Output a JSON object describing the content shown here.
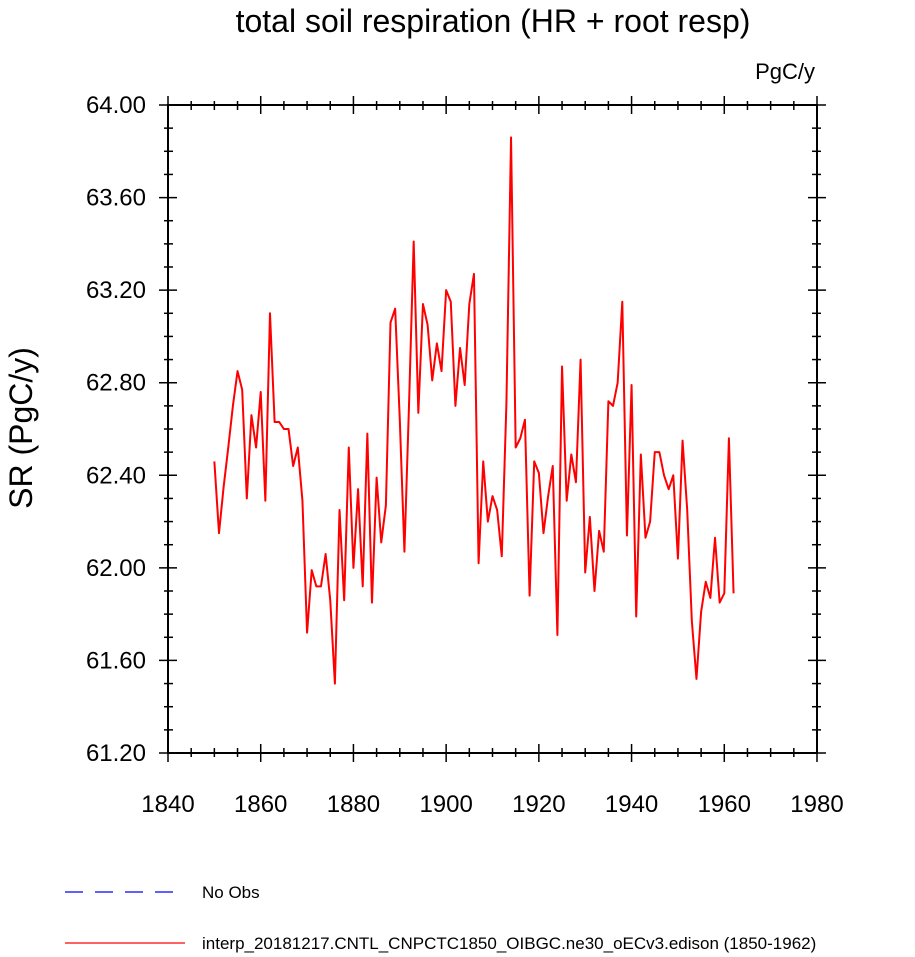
{
  "chart_data": {
    "type": "line",
    "title": "total soil respiration (HR + root resp)",
    "units_label": "PgC/y",
    "ylabel": "SR  (PgC/y)",
    "xlabel": "",
    "xlim": [
      1840,
      1980
    ],
    "ylim": [
      61.2,
      64.0
    ],
    "x_ticks": [
      1840,
      1860,
      1880,
      1900,
      1920,
      1940,
      1960,
      1980
    ],
    "x_tick_labels": [
      "1840",
      "1860",
      "1880",
      "1900",
      "1920",
      "1940",
      "1960",
      "1980"
    ],
    "y_ticks": [
      61.2,
      61.6,
      62.0,
      62.4,
      62.8,
      63.2,
      63.6,
      64.0
    ],
    "y_tick_labels": [
      "61.20",
      "61.60",
      "62.00",
      "62.40",
      "62.80",
      "63.20",
      "63.60",
      "64.00"
    ],
    "series": [
      {
        "name": "interp_20181217.CNTL_CNPCTC1850_OIBGC.ne30_oECv3.edison (1850-1962)",
        "color": "#ff0000",
        "style": "solid",
        "x": [
          1850,
          1851,
          1852,
          1853,
          1854,
          1855,
          1856,
          1857,
          1858,
          1859,
          1860,
          1861,
          1862,
          1863,
          1864,
          1865,
          1866,
          1867,
          1868,
          1869,
          1870,
          1871,
          1872,
          1873,
          1874,
          1875,
          1876,
          1877,
          1878,
          1879,
          1880,
          1881,
          1882,
          1883,
          1884,
          1885,
          1886,
          1887,
          1888,
          1889,
          1890,
          1891,
          1892,
          1893,
          1894,
          1895,
          1896,
          1897,
          1898,
          1899,
          1900,
          1901,
          1902,
          1903,
          1904,
          1905,
          1906,
          1907,
          1908,
          1909,
          1910,
          1911,
          1912,
          1913,
          1914,
          1915,
          1916,
          1917,
          1918,
          1919,
          1920,
          1921,
          1922,
          1923,
          1924,
          1925,
          1926,
          1927,
          1928,
          1929,
          1930,
          1931,
          1932,
          1933,
          1934,
          1935,
          1936,
          1937,
          1938,
          1939,
          1940,
          1941,
          1942,
          1943,
          1944,
          1945,
          1946,
          1947,
          1948,
          1949,
          1950,
          1951,
          1952,
          1953,
          1954,
          1955,
          1956,
          1957,
          1958,
          1959,
          1960,
          1961,
          1962
        ],
        "values": [
          62.46,
          62.15,
          62.35,
          62.52,
          62.7,
          62.85,
          62.77,
          62.3,
          62.66,
          62.52,
          62.76,
          62.29,
          63.1,
          62.63,
          62.63,
          62.6,
          62.6,
          62.44,
          62.52,
          62.29,
          61.72,
          61.99,
          61.92,
          61.92,
          62.06,
          61.86,
          61.5,
          62.25,
          61.86,
          62.52,
          62.0,
          62.34,
          61.92,
          62.58,
          61.85,
          62.39,
          62.11,
          62.27,
          63.06,
          63.12,
          62.64,
          62.07,
          62.71,
          63.41,
          62.67,
          63.14,
          63.05,
          62.81,
          62.97,
          62.85,
          63.2,
          63.15,
          62.7,
          62.95,
          62.79,
          63.14,
          63.27,
          62.02,
          62.46,
          62.2,
          62.31,
          62.25,
          62.05,
          62.71,
          63.86,
          62.52,
          62.56,
          62.64,
          61.88,
          62.46,
          62.41,
          62.15,
          62.31,
          62.44,
          61.71,
          62.87,
          62.29,
          62.49,
          62.37,
          62.9,
          61.98,
          62.22,
          61.9,
          62.16,
          62.07,
          62.72,
          62.7,
          62.8,
          63.15,
          62.14,
          62.79,
          61.79,
          62.49,
          62.13,
          62.2,
          62.5,
          62.5,
          62.4,
          62.34,
          62.4,
          62.04,
          62.55,
          62.25,
          61.77,
          61.52,
          61.81,
          61.94,
          61.87,
          62.13,
          61.85,
          61.89,
          62.56,
          61.89
        ]
      },
      {
        "name": "No Obs",
        "color": "#0000ff",
        "style": "dashed",
        "x": [],
        "values": []
      }
    ],
    "grid": false,
    "legend_position": "bottom-left"
  }
}
